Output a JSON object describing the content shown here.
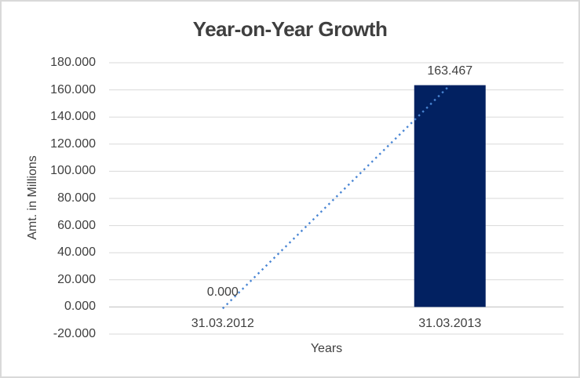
{
  "window": {
    "background": "#FFFFFF",
    "border_color": "#D9D9D9"
  },
  "chart_data": {
    "type": "bar",
    "title": "Year-on-Year Growth",
    "xlabel": "Years",
    "ylabel": "Amt. in Millions",
    "categories": [
      "31.03.2012",
      "31.03.2013"
    ],
    "values": [
      0,
      163.467
    ],
    "data_labels": [
      "0.000",
      "163.467"
    ],
    "ylim": [
      -20,
      180
    ],
    "ytick_step": 20,
    "ytick_labels": [
      "180.000",
      "160.000",
      "140.000",
      "120.000",
      "100.000",
      "80.000",
      "60.000",
      "40.000",
      "20.000",
      "0.000",
      "-20.000"
    ],
    "grid": true,
    "legend": false,
    "bar_color": "#022161",
    "trendline": {
      "style": "dotted",
      "color": "#4A86D4",
      "from": {
        "category": "31.03.2012",
        "value": 0
      },
      "to": {
        "category": "31.03.2013",
        "value": 163.467
      }
    },
    "colors": {
      "title": "#3F3F3F",
      "axis_text": "#404040",
      "gridline": "#D9D9D9",
      "axis_line": "#BFBFBF"
    }
  }
}
